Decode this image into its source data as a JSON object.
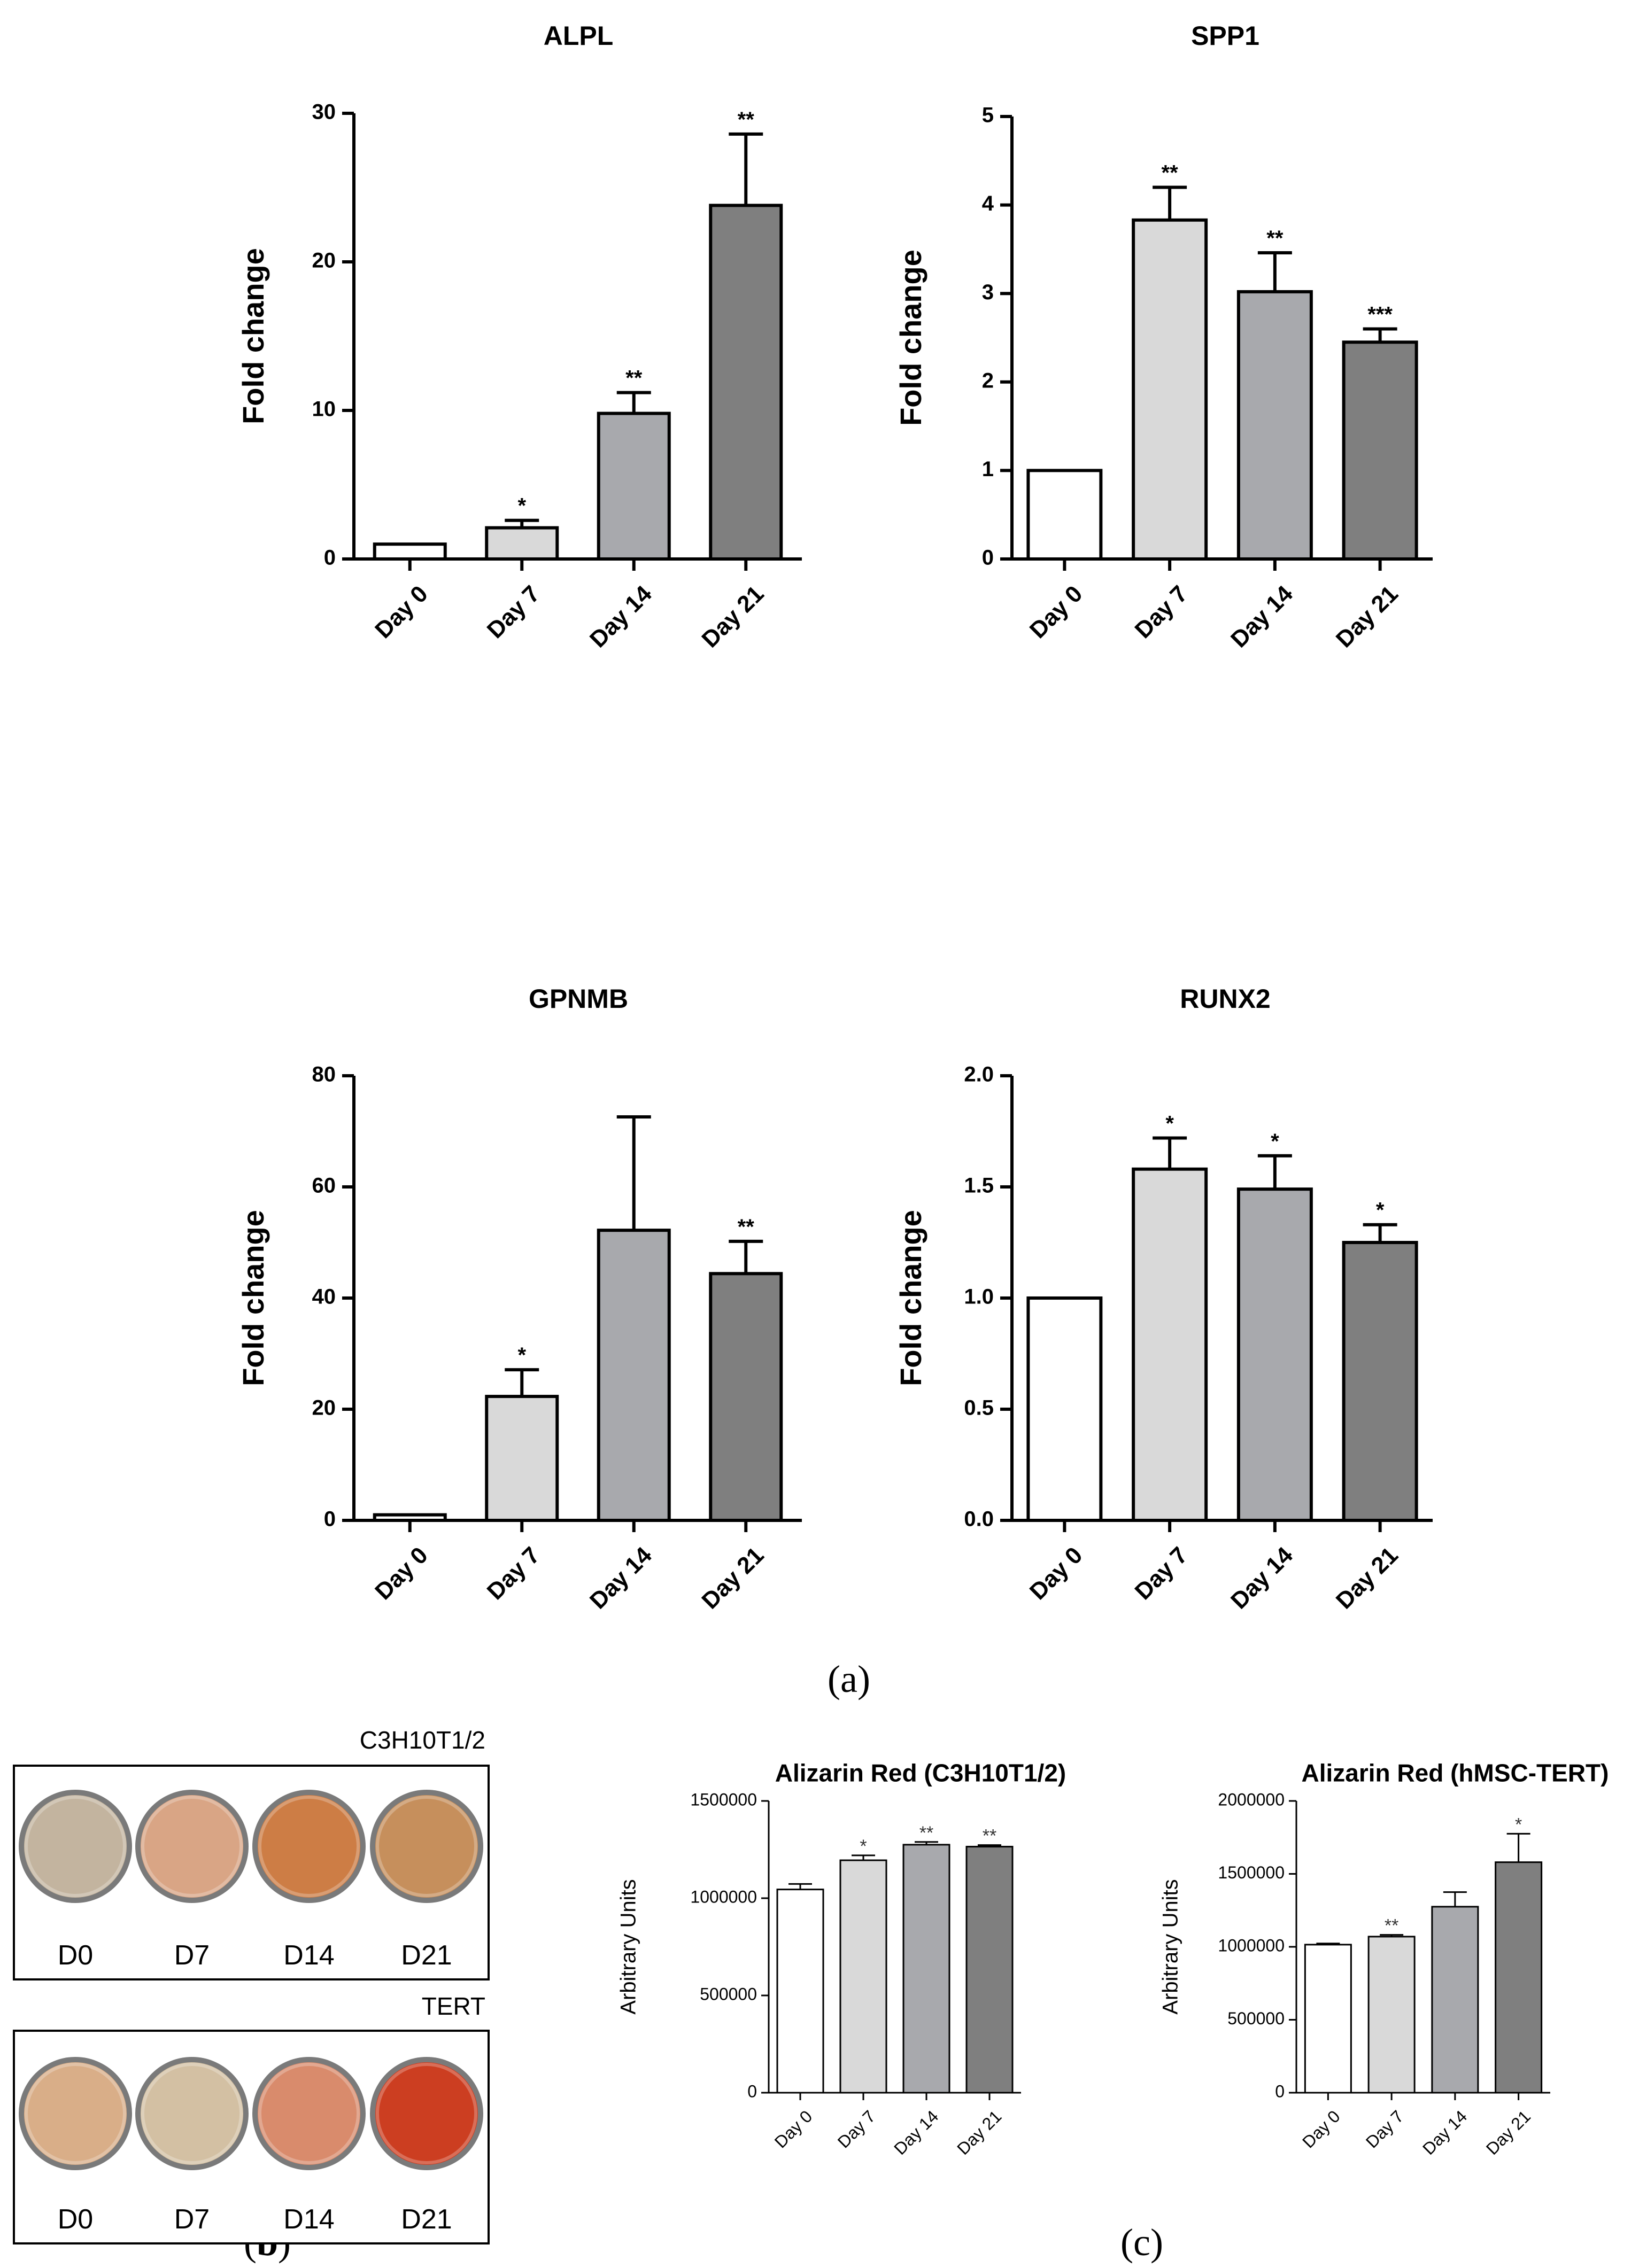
{
  "chart_data": [
    {
      "id": "alpl",
      "type": "bar",
      "title": "ALPL",
      "ylabel": "Fold change",
      "categories": [
        "Day 0",
        "Day 7",
        "Day 14",
        "Day 21"
      ],
      "values": [
        1,
        2.1,
        9.8,
        23.8
      ],
      "errors": [
        0,
        0.5,
        1.4,
        4.8
      ],
      "significance": [
        "",
        "*",
        "**",
        "**"
      ],
      "ylim": [
        0,
        30
      ],
      "ticks": [
        0,
        10,
        20,
        30
      ],
      "tick_labels": [
        "0",
        "10",
        "20",
        "30"
      ]
    },
    {
      "id": "spp1",
      "type": "bar",
      "title": "SPP1",
      "ylabel": "Fold change",
      "categories": [
        "Day 0",
        "Day 7",
        "Day 14",
        "Day 21"
      ],
      "values": [
        1,
        3.83,
        3.02,
        2.45
      ],
      "errors": [
        0,
        0.37,
        0.44,
        0.15
      ],
      "significance": [
        "",
        "**",
        "**",
        "***"
      ],
      "ylim": [
        0,
        5
      ],
      "ticks": [
        0,
        1,
        2,
        3,
        4,
        5
      ],
      "tick_labels": [
        "0",
        "1",
        "2",
        "3",
        "4",
        "5"
      ]
    },
    {
      "id": "gpnmb",
      "type": "bar",
      "title": "GPNMB",
      "ylabel": "Fold change",
      "categories": [
        "Day 0",
        "Day 7",
        "Day 14",
        "Day 21"
      ],
      "values": [
        1,
        22.3,
        52.2,
        44.4
      ],
      "errors": [
        0,
        4.8,
        20.4,
        5.8
      ],
      "significance": [
        "",
        "*",
        "",
        "**"
      ],
      "ylim": [
        0,
        80
      ],
      "ticks": [
        0,
        20,
        40,
        60,
        80
      ],
      "tick_labels": [
        "0",
        "20",
        "40",
        "60",
        "80"
      ]
    },
    {
      "id": "runx2",
      "type": "bar",
      "title": "RUNX2",
      "ylabel": "Fold change",
      "categories": [
        "Day 0",
        "Day 7",
        "Day 14",
        "Day 21"
      ],
      "values": [
        1.0,
        1.58,
        1.49,
        1.25
      ],
      "errors": [
        0,
        0.14,
        0.15,
        0.08
      ],
      "significance": [
        "",
        "*",
        "*",
        "*"
      ],
      "ylim": [
        0,
        2.0
      ],
      "ticks": [
        0,
        0.5,
        1.0,
        1.5,
        2.0
      ],
      "tick_labels": [
        "0.0",
        "0.5",
        "1.0",
        "1.5",
        "2.0"
      ]
    },
    {
      "id": "ar_c3h",
      "type": "bar",
      "title": "Alizarin Red (C3H10T1/2)",
      "ylabel": "Arbitrary Units",
      "categories": [
        "Day 0",
        "Day 7",
        "Day 14",
        "Day 21"
      ],
      "values": [
        1045000,
        1195000,
        1275000,
        1265000
      ],
      "errors": [
        28000,
        25000,
        14000,
        8000
      ],
      "significance": [
        "",
        "*",
        "**",
        "**"
      ],
      "ylim": [
        0,
        1500000
      ],
      "ticks": [
        0,
        500000,
        1000000,
        1500000
      ],
      "tick_labels": [
        "0",
        "500000",
        "1000000",
        "1500000"
      ]
    },
    {
      "id": "ar_hmsc",
      "type": "bar",
      "title": "Alizarin  Red (hMSC-TERT)",
      "ylabel": "Arbitrary Units",
      "categories": [
        "Day 0",
        "Day 7",
        "Day 14",
        "Day 21"
      ],
      "values": [
        1015000,
        1070000,
        1275000,
        1580000
      ],
      "errors": [
        8000,
        12000,
        100000,
        195000
      ],
      "significance": [
        "",
        "**",
        "",
        "*"
      ],
      "ylim": [
        0,
        2000000
      ],
      "ticks": [
        0,
        500000,
        1000000,
        1500000,
        2000000
      ],
      "tick_labels": [
        "0",
        "500000",
        "1000000",
        "1500000",
        "2000000"
      ]
    }
  ],
  "bar_colors": [
    "#ffffff",
    "#d9d9d9",
    "#a8a9ad",
    "#7f7f7f"
  ],
  "panel_labels": {
    "a": "(a)",
    "b_open": "(",
    "b_letter": "b",
    "b_close": ")",
    "c": "(c)"
  },
  "staining": {
    "top_label": "C3H10T1/2",
    "bottom_label": "TERT",
    "wells_top": [
      "D0",
      "D7",
      "D14",
      "D21"
    ],
    "wells_bottom": [
      "D0",
      "D7",
      "D14",
      "D21"
    ],
    "colors_top": [
      "#c3b49f",
      "#d9a585",
      "#cd7d45",
      "#c68f5c"
    ],
    "colors_bottom": [
      "#d9ae88",
      "#d3c0a3",
      "#d98b6c",
      "#cc3e21"
    ]
  }
}
